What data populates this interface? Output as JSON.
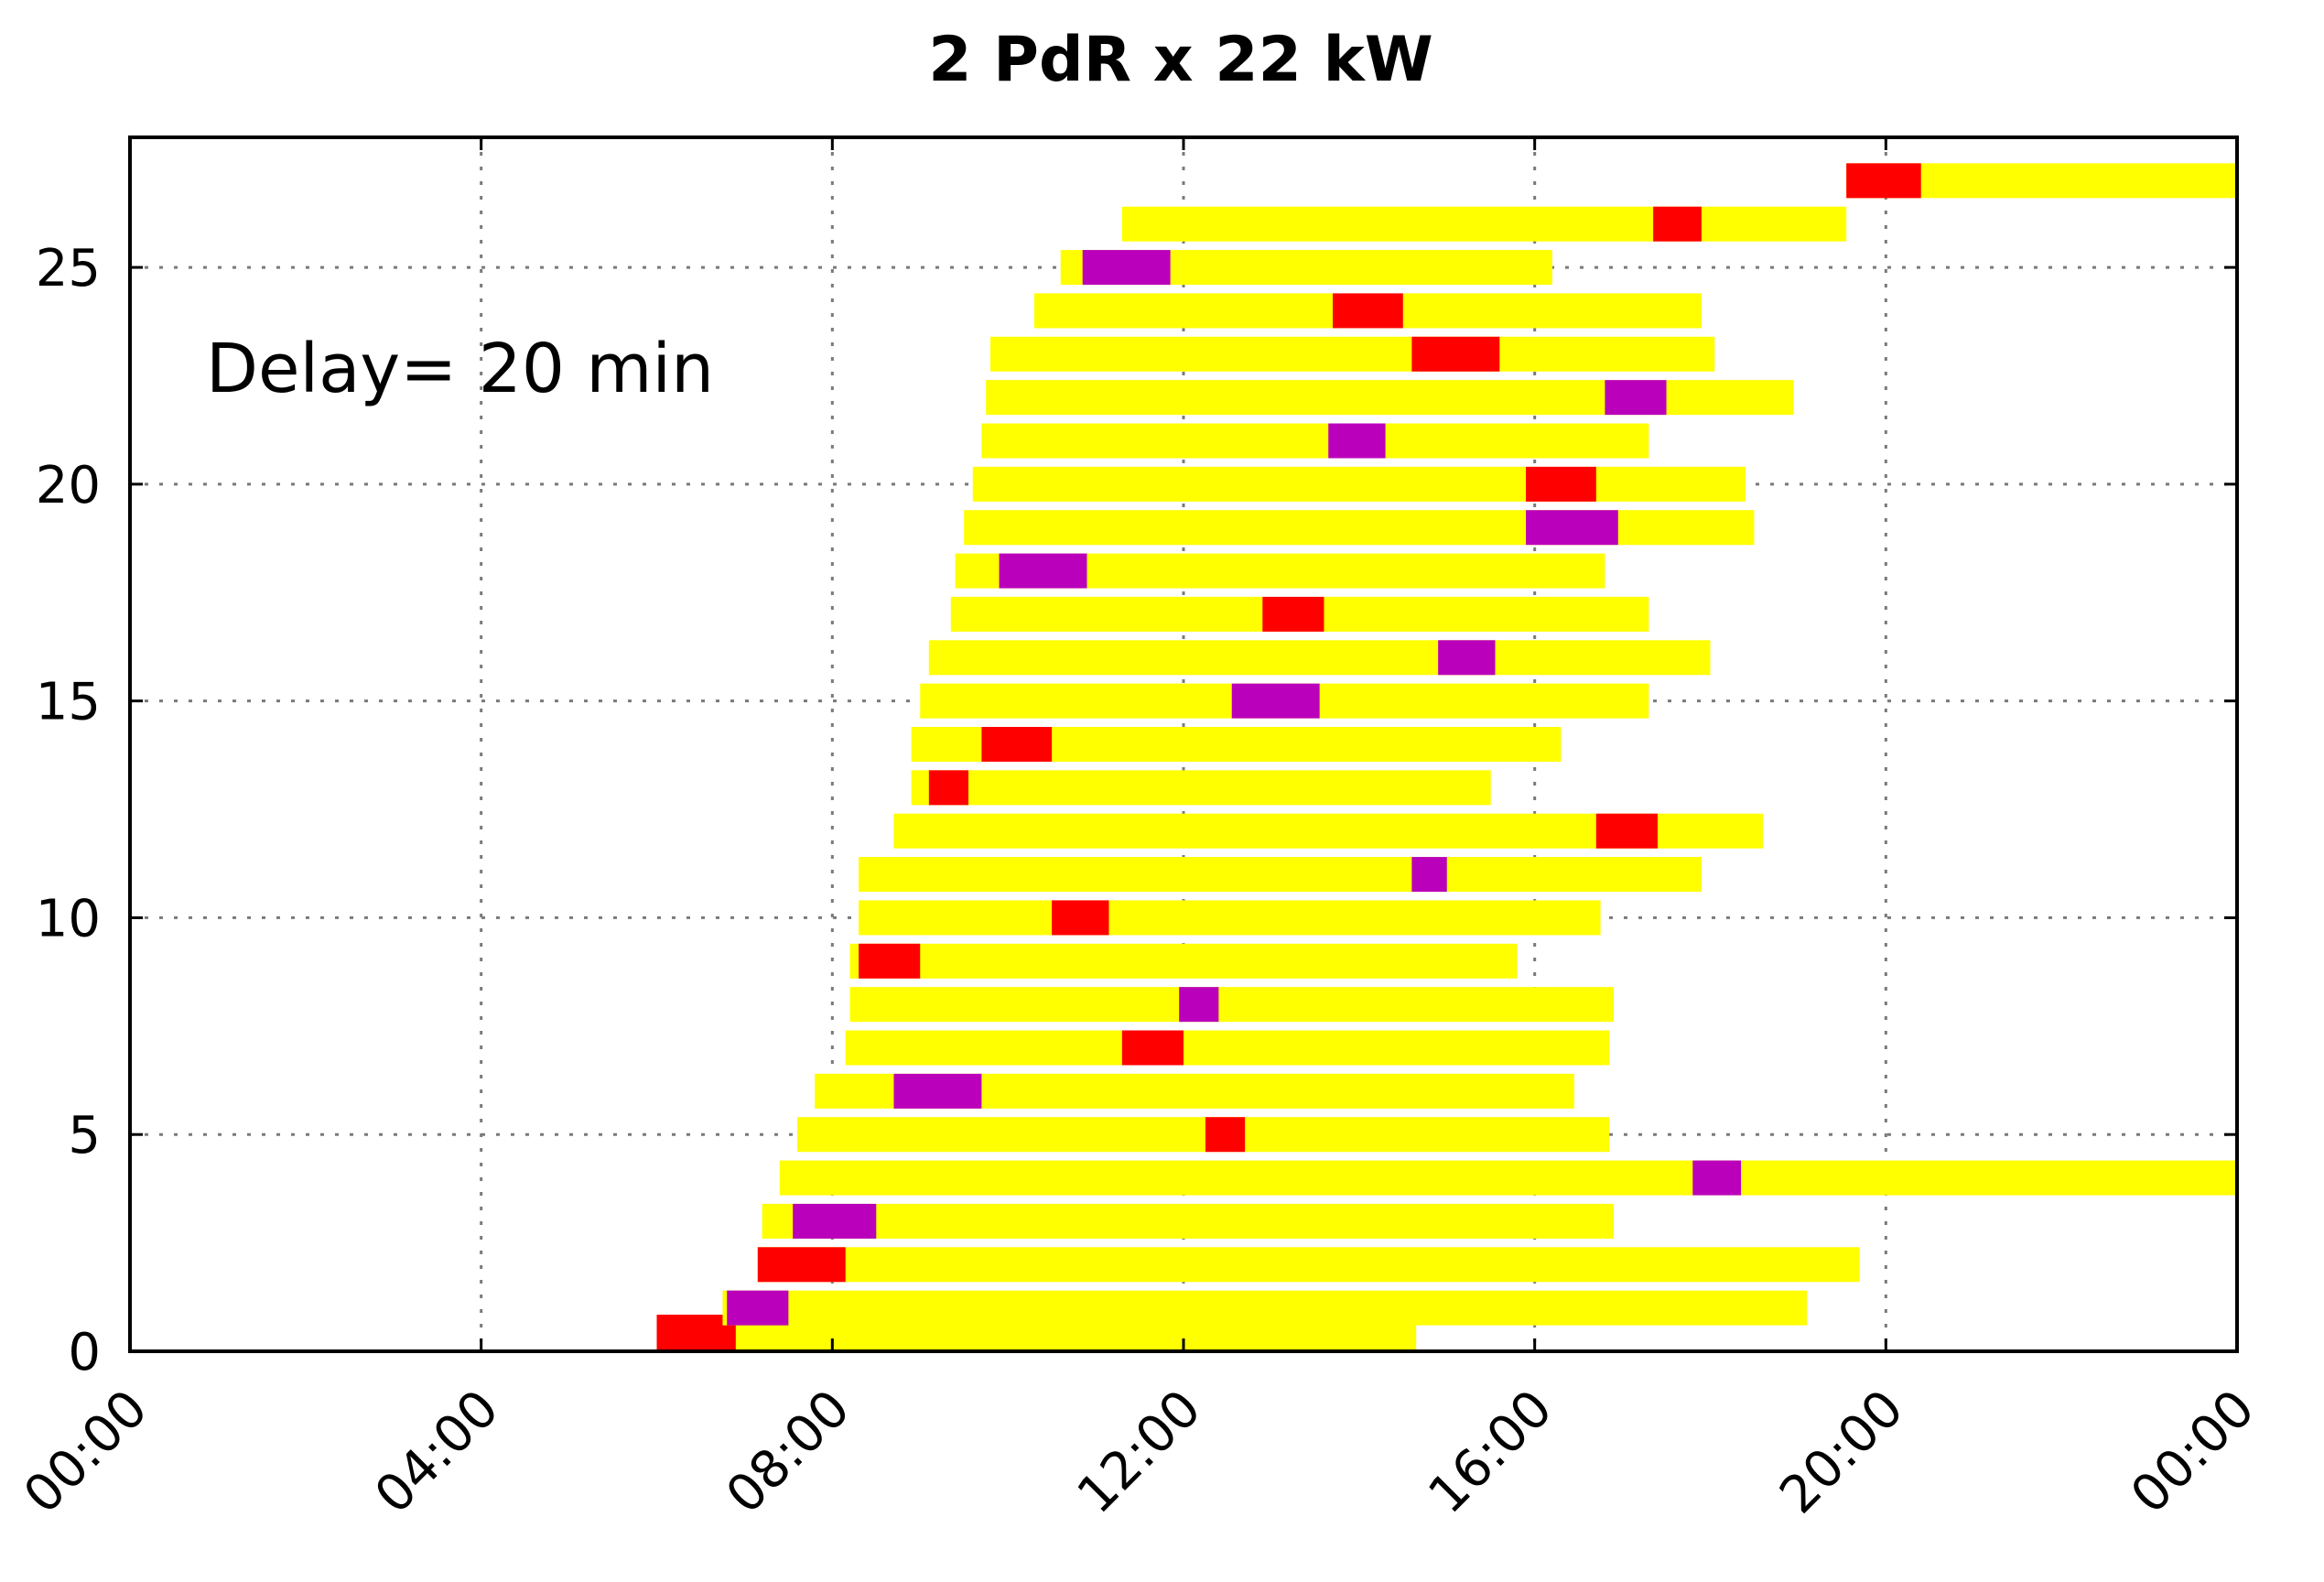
{
  "chart_data": {
    "type": "bar",
    "title": "2 PdR x 22 kW",
    "annotation": "Delay= 20 min",
    "xlabel": "",
    "ylabel": "",
    "x_unit": "hours",
    "xlim": [
      0,
      24
    ],
    "ylim": [
      0,
      28
    ],
    "x_ticks": [
      {
        "value": 0,
        "label": "00:00"
      },
      {
        "value": 4,
        "label": "04:00"
      },
      {
        "value": 8,
        "label": "08:00"
      },
      {
        "value": 12,
        "label": "12:00"
      },
      {
        "value": 16,
        "label": "16:00"
      },
      {
        "value": 20,
        "label": "20:00"
      },
      {
        "value": 24,
        "label": "00:00"
      }
    ],
    "y_ticks": [
      {
        "value": 0,
        "label": "0"
      },
      {
        "value": 5,
        "label": "5"
      },
      {
        "value": 10,
        "label": "10"
      },
      {
        "value": 15,
        "label": "15"
      },
      {
        "value": 20,
        "label": "20"
      },
      {
        "value": 25,
        "label": "25"
      }
    ],
    "grid": true,
    "colors": {
      "stay": "#ffff00",
      "red": "#ff0000",
      "purple": "#bb00bb"
    },
    "rows": [
      {
        "y": 0,
        "start": 6.0,
        "end": 14.65,
        "mark_start": 6.0,
        "mark_end": 6.9,
        "mark_color": "red"
      },
      {
        "y": 1,
        "start": 6.75,
        "end": 19.1,
        "mark_start": 6.8,
        "mark_end": 7.5,
        "mark_color": "purple"
      },
      {
        "y": 2,
        "start": 7.15,
        "end": 19.7,
        "mark_start": 7.15,
        "mark_end": 8.15,
        "mark_color": "red"
      },
      {
        "y": 3,
        "start": 7.2,
        "end": 16.9,
        "mark_start": 7.55,
        "mark_end": 8.5,
        "mark_color": "purple"
      },
      {
        "y": 4,
        "start": 7.4,
        "end": 24.0,
        "mark_start": 17.8,
        "mark_end": 18.35,
        "mark_color": "purple"
      },
      {
        "y": 5,
        "start": 7.6,
        "end": 16.85,
        "mark_start": 12.25,
        "mark_end": 12.7,
        "mark_color": "red"
      },
      {
        "y": 6,
        "start": 7.8,
        "end": 16.45,
        "mark_start": 8.7,
        "mark_end": 9.7,
        "mark_color": "purple"
      },
      {
        "y": 7,
        "start": 8.15,
        "end": 16.85,
        "mark_start": 11.3,
        "mark_end": 12.0,
        "mark_color": "red"
      },
      {
        "y": 8,
        "start": 8.2,
        "end": 16.9,
        "mark_start": 11.95,
        "mark_end": 12.4,
        "mark_color": "purple"
      },
      {
        "y": 9,
        "start": 8.2,
        "end": 15.8,
        "mark_start": 8.3,
        "mark_end": 9.0,
        "mark_color": "red"
      },
      {
        "y": 10,
        "start": 8.3,
        "end": 16.75,
        "mark_start": 10.5,
        "mark_end": 11.15,
        "mark_color": "red"
      },
      {
        "y": 11,
        "start": 8.3,
        "end": 17.9,
        "mark_start": 14.6,
        "mark_end": 15.0,
        "mark_color": "purple"
      },
      {
        "y": 12,
        "start": 8.7,
        "end": 18.6,
        "mark_start": 16.7,
        "mark_end": 17.4,
        "mark_color": "red"
      },
      {
        "y": 13,
        "start": 8.9,
        "end": 15.5,
        "mark_start": 9.1,
        "mark_end": 9.55,
        "mark_color": "red"
      },
      {
        "y": 14,
        "start": 8.9,
        "end": 16.3,
        "mark_start": 9.7,
        "mark_end": 10.5,
        "mark_color": "red"
      },
      {
        "y": 15,
        "start": 9.0,
        "end": 17.3,
        "mark_start": 12.55,
        "mark_end": 13.55,
        "mark_color": "purple"
      },
      {
        "y": 16,
        "start": 9.1,
        "end": 18.0,
        "mark_start": 14.9,
        "mark_end": 15.55,
        "mark_color": "purple"
      },
      {
        "y": 17,
        "start": 9.35,
        "end": 17.3,
        "mark_start": 12.9,
        "mark_end": 13.6,
        "mark_color": "red"
      },
      {
        "y": 18,
        "start": 9.4,
        "end": 16.8,
        "mark_start": 9.9,
        "mark_end": 10.9,
        "mark_color": "purple"
      },
      {
        "y": 19,
        "start": 9.5,
        "end": 18.5,
        "mark_start": 15.9,
        "mark_end": 16.95,
        "mark_color": "purple"
      },
      {
        "y": 20,
        "start": 9.6,
        "end": 18.4,
        "mark_start": 15.9,
        "mark_end": 16.7,
        "mark_color": "red"
      },
      {
        "y": 21,
        "start": 9.7,
        "end": 17.3,
        "mark_start": 13.65,
        "mark_end": 14.3,
        "mark_color": "purple"
      },
      {
        "y": 22,
        "start": 9.75,
        "end": 18.95,
        "mark_start": 16.8,
        "mark_end": 17.5,
        "mark_color": "purple"
      },
      {
        "y": 23,
        "start": 9.8,
        "end": 18.05,
        "mark_start": 14.6,
        "mark_end": 15.6,
        "mark_color": "red"
      },
      {
        "y": 24,
        "start": 10.3,
        "end": 17.9,
        "mark_start": 13.7,
        "mark_end": 14.5,
        "mark_color": "red"
      },
      {
        "y": 25,
        "start": 10.6,
        "end": 16.2,
        "mark_start": 10.85,
        "mark_end": 11.85,
        "mark_color": "purple"
      },
      {
        "y": 26,
        "start": 11.3,
        "end": 19.55,
        "mark_start": 17.35,
        "mark_end": 17.9,
        "mark_color": "red"
      },
      {
        "y": 27,
        "start": 19.55,
        "end": 24.0,
        "mark_start": 19.55,
        "mark_end": 20.4,
        "mark_color": "red"
      }
    ]
  }
}
